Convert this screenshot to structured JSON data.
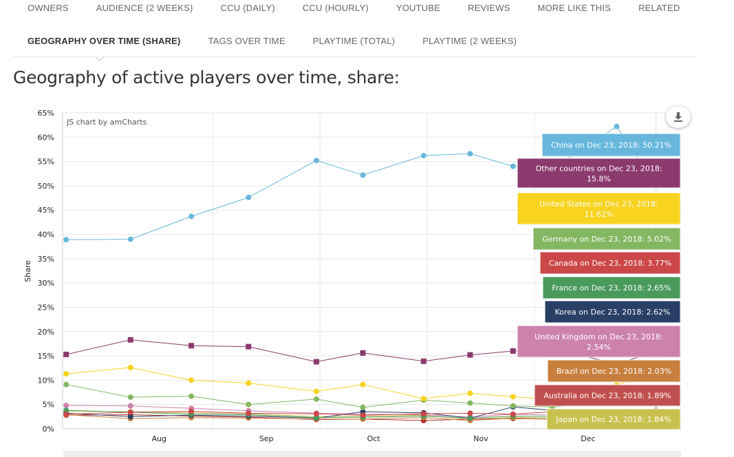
{
  "tabs_row1": [
    "OWNERS",
    "AUDIENCE (2 WEEKS)",
    "CCU (DAILY)",
    "CCU (HOURLY)",
    "YOUTUBE",
    "REVIEWS",
    "MORE LIKE THIS",
    "RELATED"
  ],
  "tabs_row2": [
    "GEOGRAPHY OVER TIME (SHARE)",
    "TAGS OVER TIME",
    "PLAYTIME (TOTAL)",
    "PLAYTIME (2 WEEKS)"
  ],
  "active_tab": "GEOGRAPHY OVER TIME (SHARE)",
  "section_title": "Geography of active players over time, share:",
  "chart_credit": "JS chart by amCharts",
  "export_icon": "download-icon",
  "chart_data": {
    "type": "line",
    "ylabel": "Share",
    "xlabel": "",
    "ylim": [
      0,
      65
    ],
    "yticks": [
      "0%",
      "5%",
      "10%",
      "15%",
      "20%",
      "25%",
      "30%",
      "35%",
      "40%",
      "45%",
      "50%",
      "55%",
      "60%",
      "65%"
    ],
    "x_domain": [
      "2018-07-10",
      "2018-12-30"
    ],
    "x_ticks": [
      {
        "label": "Aug",
        "date": "2018-08-06"
      },
      {
        "label": "Sep",
        "date": "2018-09-05"
      },
      {
        "label": "Oct",
        "date": "2018-10-05"
      },
      {
        "label": "Nov",
        "date": "2018-11-04"
      },
      {
        "label": "Dec",
        "date": "2018-12-04"
      }
    ],
    "x": [
      "2018-07-11",
      "2018-07-29",
      "2018-08-15",
      "2018-08-31",
      "2018-09-19",
      "2018-10-02",
      "2018-10-19",
      "2018-11-01",
      "2018-11-13",
      "2018-11-24",
      "2018-12-12",
      "2018-12-23"
    ],
    "grid": true,
    "series": [
      {
        "name": "China",
        "color": "#67b7dc",
        "marker": "circle",
        "values": [
          38.9,
          39.0,
          43.7,
          47.6,
          55.2,
          52.2,
          56.2,
          56.6,
          54.0,
          53.5,
          62.2,
          50.21
        ]
      },
      {
        "name": "Other countries",
        "color": "#8b3a6e",
        "marker": "square",
        "values": [
          15.3,
          18.3,
          17.1,
          16.9,
          13.8,
          15.6,
          13.9,
          15.2,
          16.0,
          16.4,
          13.4,
          15.8
        ]
      },
      {
        "name": "United States",
        "color": "#f8d31f",
        "marker": "circle",
        "values": [
          11.3,
          12.6,
          10.0,
          9.4,
          7.7,
          9.1,
          6.2,
          7.3,
          6.6,
          6.0,
          9.0,
          11.62
        ]
      },
      {
        "name": "Germany",
        "color": "#84b761",
        "marker": "circle",
        "values": [
          9.1,
          6.5,
          6.7,
          5.0,
          6.1,
          4.4,
          5.9,
          5.3,
          4.7,
          4.5,
          5.4,
          5.02
        ]
      },
      {
        "name": "Canada",
        "color": "#cc4748",
        "marker": "circle",
        "values": [
          3.0,
          3.4,
          3.6,
          3.2,
          3.1,
          2.8,
          3.1,
          3.2,
          3.0,
          3.5,
          3.2,
          3.77
        ]
      },
      {
        "name": "France",
        "color": "#4a9a5c",
        "marker": "circle",
        "values": [
          3.8,
          3.4,
          3.0,
          2.9,
          2.3,
          2.4,
          2.6,
          2.2,
          2.6,
          2.5,
          2.8,
          2.65
        ]
      },
      {
        "name": "Korea",
        "color": "#2a3f66",
        "marker": "circle",
        "values": [
          3.2,
          2.5,
          2.8,
          2.6,
          2.2,
          3.5,
          3.3,
          2.2,
          4.5,
          3.8,
          3.1,
          2.62
        ]
      },
      {
        "name": "United Kingdom",
        "color": "#cd82ad",
        "marker": "circle",
        "values": [
          4.8,
          4.7,
          4.2,
          3.7,
          3.2,
          3.0,
          2.9,
          2.4,
          3.0,
          2.8,
          2.7,
          2.54
        ]
      },
      {
        "name": "Brazil",
        "color": "#c87f3d",
        "marker": "circle",
        "values": [
          2.9,
          2.1,
          2.3,
          2.2,
          2.0,
          2.0,
          2.3,
          1.7,
          2.2,
          2.0,
          2.6,
          2.03
        ]
      },
      {
        "name": "Australia",
        "color": "#b0312f",
        "marker": "circle",
        "values": [
          2.8,
          2.9,
          2.6,
          2.4,
          1.9,
          2.0,
          1.7,
          2.0,
          2.1,
          2.0,
          2.0,
          1.89
        ]
      },
      {
        "name": "Japan",
        "color": "#c9c14e",
        "marker": "circle",
        "values": [
          3.6,
          3.5,
          3.3,
          3.1,
          2.5,
          2.6,
          2.8,
          1.9,
          2.4,
          2.2,
          2.3,
          1.84
        ]
      }
    ],
    "tooltips": [
      {
        "text": "China on Dec 23, 2018: 50.21%",
        "color": "#67b7dc"
      },
      {
        "text": "Other countries on Dec 23, 2018: 15.8%",
        "color": "#8b3a6e"
      },
      {
        "text": "United States on Dec 23, 2018: 11.62%",
        "color": "#f8d31f"
      },
      {
        "text": "Germany on Dec 23, 2018: 5.02%",
        "color": "#84b761"
      },
      {
        "text": "Canada on Dec 23, 2018: 3.77%",
        "color": "#cc4748"
      },
      {
        "text": "France on Dec 23, 2018: 2.65%",
        "color": "#4a9a5c"
      },
      {
        "text": "Korea on Dec 23, 2018: 2.62%",
        "color": "#2a3f66"
      },
      {
        "text": "United Kingdom on Dec 23, 2018: 2.54%",
        "color": "#cd82ad"
      },
      {
        "text": "Brazil on Dec 23, 2018: 2.03%",
        "color": "#c87f3d"
      },
      {
        "text": "Australia on Dec 23, 2018: 1.89%",
        "color": "#c0504f"
      },
      {
        "text": "Japan on Dec 23, 2018: 1.84%",
        "color": "#c9c14e"
      }
    ]
  }
}
